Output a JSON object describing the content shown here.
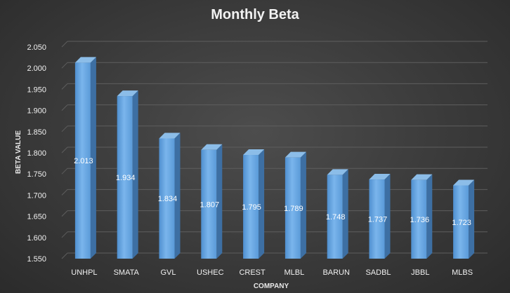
{
  "chart_data": {
    "type": "bar",
    "title": "Monthly Beta",
    "xlabel": "COMPANY",
    "ylabel": "BETA VALUE",
    "categories": [
      "UNHPL",
      "SMATA",
      "GVL",
      "USHEC",
      "CREST",
      "MLBL",
      "BARUN",
      "SADBL",
      "JBBL",
      "MLBS"
    ],
    "values": [
      2.013,
      1.934,
      1.834,
      1.807,
      1.795,
      1.789,
      1.748,
      1.737,
      1.736,
      1.723
    ],
    "data_labels": [
      "2.013",
      "1.934",
      "1.834",
      "1.807",
      "1.795",
      "1.789",
      "1.748",
      "1.737",
      "1.736",
      "1.723"
    ],
    "ylim": [
      1.55,
      2.05
    ],
    "yticks": [
      "1.550",
      "1.600",
      "1.650",
      "1.700",
      "1.750",
      "1.800",
      "1.850",
      "1.900",
      "1.950",
      "2.000",
      "2.050"
    ],
    "grid": true,
    "legend": "none",
    "colors": {
      "bar": "#5b9bd5",
      "bar_light": "#78b3ea",
      "bar_side": "#3d6fa3",
      "bar_top": "#8cbde8"
    }
  }
}
